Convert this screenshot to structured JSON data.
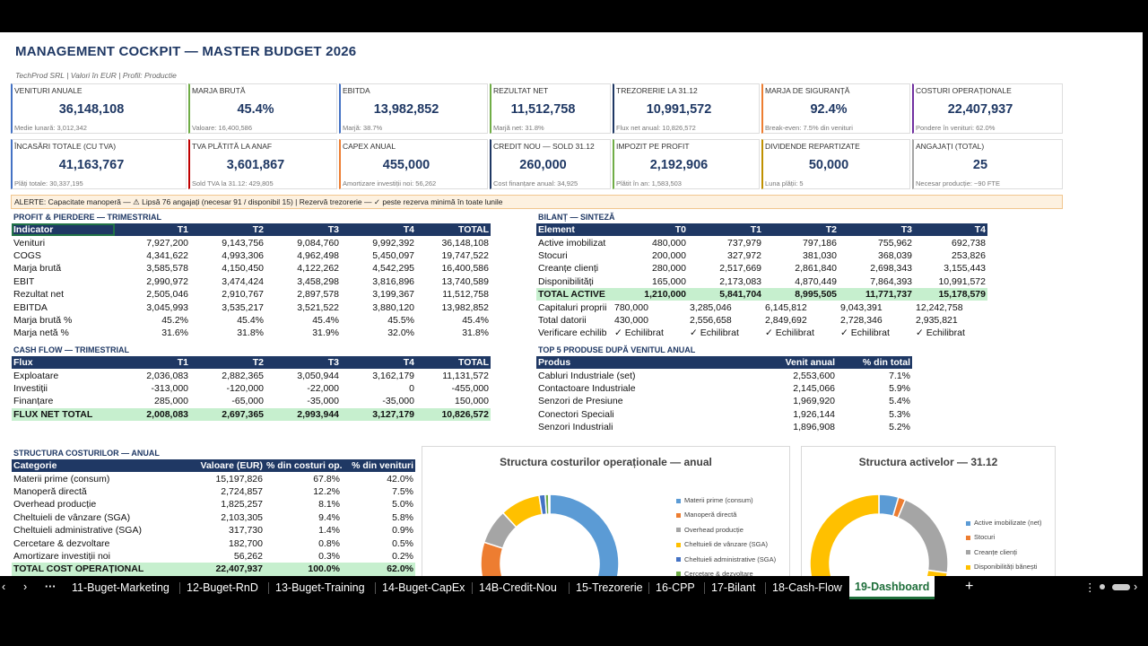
{
  "header": {
    "title": "MANAGEMENT COCKPIT — MASTER BUDGET 2026",
    "subtitle": "TechProd SRL  |  Valori în EUR  |  Profil: Productie"
  },
  "kpis": [
    {
      "label": "Venituri anuale",
      "value": "36,148,108",
      "sub": "Medie lunară: 3,012,342",
      "color": "#4472c4"
    },
    {
      "label": "Marja brută",
      "value": "45.4%",
      "sub": "Valoare: 16,400,586",
      "color": "#70ad47"
    },
    {
      "label": "EBITDA",
      "value": "13,982,852",
      "sub": "Marjă: 38.7%",
      "color": "#4472c4"
    },
    {
      "label": "Rezultat net",
      "value": "11,512,758",
      "sub": "Marjă net: 31.8%",
      "color": "#70ad47"
    },
    {
      "label": "Trezorerie la 31.12",
      "value": "10,991,572",
      "sub": "Flux net anual: 10,826,572",
      "color": "#1f3864"
    },
    {
      "label": "Marja de siguranță",
      "value": "92.4%",
      "sub": "Break-even: 7.5% din venituri",
      "color": "#ed7d31"
    },
    {
      "label": "Costuri operaționale",
      "value": "22,407,937",
      "sub": "Pondere în venituri: 62.0%",
      "color": "#7030a0"
    },
    {
      "label": "Încasări totale (cu TVA)",
      "value": "41,163,767",
      "sub": "Plăți totale: 30,337,195",
      "color": "#4472c4"
    },
    {
      "label": "TVA plătită la ANAF",
      "value": "3,601,867",
      "sub": "Sold TVA la 31.12: 429,805",
      "color": "#c00000"
    },
    {
      "label": "CAPEX anual",
      "value": "455,000",
      "sub": "Amortizare investiții noi: 56,262",
      "color": "#ed7d31"
    },
    {
      "label": "Credit nou — sold 31.12",
      "value": "260,000",
      "sub": "Cost finanțare anual: 34,925",
      "color": "#1f3864"
    },
    {
      "label": "Impozit pe profit",
      "value": "2,192,906",
      "sub": "Plătit în an: 1,583,503",
      "color": "#70ad47"
    },
    {
      "label": "Dividende repartizate",
      "value": "50,000",
      "sub": "Luna plății: 5",
      "color": "#bf9000"
    },
    {
      "label": "Angajați (total)",
      "value": "25",
      "sub": "Necesar producție: ~90 FTE",
      "color": "#a5a5a5"
    }
  ],
  "alert": "ALERTE:  Capacitate manoperă — ⚠ Lipsă 76 angajați (necesar 91 / disponibil 15)   |   Rezervă trezorerie — ✓ peste rezerva minimă în toate lunile",
  "pl": {
    "title": "PROFIT & PIERDERE — TRIMESTRIAL",
    "headers": [
      "Indicator",
      "T1",
      "T2",
      "T3",
      "T4",
      "TOTAL"
    ],
    "rows": [
      [
        "Venituri",
        "7,927,200",
        "9,143,756",
        "9,084,760",
        "9,992,392",
        "36,148,108"
      ],
      [
        "COGS",
        "4,341,622",
        "4,993,306",
        "4,962,498",
        "5,450,097",
        "19,747,522"
      ],
      [
        "Marja brută",
        "3,585,578",
        "4,150,450",
        "4,122,262",
        "4,542,295",
        "16,400,586"
      ],
      [
        "EBIT",
        "2,990,972",
        "3,474,424",
        "3,458,298",
        "3,816,896",
        "13,740,589"
      ],
      [
        "Rezultat net",
        "2,505,046",
        "2,910,767",
        "2,897,578",
        "3,199,367",
        "11,512,758"
      ],
      [
        "EBITDA",
        "3,045,993",
        "3,535,217",
        "3,521,522",
        "3,880,120",
        "13,982,852"
      ],
      [
        "Marja brută %",
        "45.2%",
        "45.4%",
        "45.4%",
        "45.5%",
        "45.4%"
      ],
      [
        "Marja netă %",
        "31.6%",
        "31.8%",
        "31.9%",
        "32.0%",
        "31.8%"
      ]
    ]
  },
  "cf": {
    "title": "CASH FLOW — TRIMESTRIAL",
    "headers": [
      "Flux",
      "T1",
      "T2",
      "T3",
      "T4",
      "TOTAL"
    ],
    "rows": [
      [
        "Exploatare",
        "2,036,083",
        "2,882,365",
        "3,050,944",
        "3,162,179",
        "11,131,572"
      ],
      [
        "Investiții",
        "-313,000",
        "-120,000",
        "-22,000",
        "0",
        "-455,000"
      ],
      [
        "Finanțare",
        "285,000",
        "-65,000",
        "-35,000",
        "-35,000",
        "150,000"
      ]
    ],
    "total": [
      "FLUX NET TOTAL",
      "2,008,083",
      "2,697,365",
      "2,993,944",
      "3,127,179",
      "10,826,572"
    ]
  },
  "bilant": {
    "title": "BILANȚ — SINTEZĂ",
    "headers": [
      "Element",
      "T0",
      "T1",
      "T2",
      "T3",
      "T4"
    ],
    "rows": [
      [
        "Active imobilizat",
        "480,000",
        "737,979",
        "797,186",
        "755,962",
        "692,738"
      ],
      [
        "Stocuri",
        "200,000",
        "327,972",
        "381,030",
        "368,039",
        "253,826"
      ],
      [
        "Creanțe clienți",
        "280,000",
        "2,517,669",
        "2,861,840",
        "2,698,343",
        "3,155,443"
      ],
      [
        "Disponibilități",
        "165,000",
        "2,173,083",
        "4,870,449",
        "7,864,393",
        "10,991,572"
      ]
    ],
    "total": [
      "TOTAL ACTIVE",
      "1,210,000",
      "5,841,704",
      "8,995,505",
      "11,771,737",
      "15,178,579"
    ],
    "rows2": [
      [
        "Capitaluri proprii",
        "780,000",
        "3,285,046",
        "6,145,812",
        "9,043,391",
        "12,242,758"
      ],
      [
        "Total datorii",
        "430,000",
        "2,556,658",
        "2,849,692",
        "2,728,346",
        "2,935,821"
      ],
      [
        "Verificare echilib",
        "✓ Echilibrat",
        "✓ Echilibrat",
        "✓ Echilibrat",
        "✓ Echilibrat",
        "✓ Echilibrat"
      ]
    ]
  },
  "top5": {
    "title": "TOP 5 PRODUSE DUPĂ VENITUL ANUAL",
    "headers": [
      "Produs",
      "Venit anual",
      "% din total"
    ],
    "rows": [
      [
        "Cabluri Industriale (set)",
        "2,553,600",
        "7.1%"
      ],
      [
        "Contactoare Industriale",
        "2,145,066",
        "5.9%"
      ],
      [
        "Senzori de Presiune",
        "1,969,920",
        "5.4%"
      ],
      [
        "Conectori Speciali",
        "1,926,144",
        "5.3%"
      ],
      [
        "Senzori Industriali",
        "1,896,908",
        "5.2%"
      ]
    ]
  },
  "costs": {
    "title": "STRUCTURA COSTURILOR — ANUAL",
    "headers": [
      "Categorie",
      "Valoare (EUR)",
      "% din costuri op.",
      "% din venituri"
    ],
    "rows": [
      [
        "Materii prime (consum)",
        "15,197,826",
        "67.8%",
        "42.0%"
      ],
      [
        "Manoperă directă",
        "2,724,857",
        "12.2%",
        "7.5%"
      ],
      [
        "Overhead producție",
        "1,825,257",
        "8.1%",
        "5.0%"
      ],
      [
        "Cheltuieli de vânzare (SGA)",
        "2,103,305",
        "9.4%",
        "5.8%"
      ],
      [
        "Cheltuieli administrative (SGA)",
        "317,730",
        "1.4%",
        "0.9%"
      ],
      [
        "Cercetare & dezvoltare",
        "182,700",
        "0.8%",
        "0.5%"
      ],
      [
        "Amortizare investiții noi",
        "56,262",
        "0.3%",
        "0.2%"
      ]
    ],
    "total": [
      "TOTAL COST OPERAȚIONAL",
      "22,407,937",
      "100.0%",
      "62.0%"
    ]
  },
  "chart_data": [
    {
      "type": "pie",
      "title": "Structura costurilor operaționale — anual",
      "categories": [
        "Materii prime (consum)",
        "Manoperă directă",
        "Overhead producție",
        "Cheltuieli de vânzare (SGA)",
        "Cheltuieli administrative (SGA)",
        "Cercetare & dezvoltare",
        "Amortizare investiții noi"
      ],
      "values": [
        15197826,
        2724857,
        1825257,
        2103305,
        317730,
        182700,
        56262
      ],
      "colors": [
        "#5b9bd5",
        "#ed7d31",
        "#a5a5a5",
        "#ffc000",
        "#4472c4",
        "#70ad47",
        "#264478"
      ],
      "legend": "right"
    },
    {
      "type": "pie",
      "title": "Structura activelor — 31.12",
      "categories": [
        "Active imobilizate (net)",
        "Stocuri",
        "Creanțe clienți",
        "Disponibilități bănești"
      ],
      "values": [
        692738,
        253826,
        3155443,
        10991572
      ],
      "colors": [
        "#5b9bd5",
        "#ed7d31",
        "#a5a5a5",
        "#ffc000"
      ],
      "legend": "right"
    }
  ],
  "tabs": [
    "11-Buget-Marketing",
    "12-Buget-RnD",
    "13-Buget-Training",
    "14-Buget-CapEx",
    "14B-Credit-Nou",
    "15-Trezorerie",
    "16-CPP",
    "17-Bilant",
    "18-Cash-Flow",
    "19-Dashboard"
  ],
  "active_tab": "19-Dashboard"
}
